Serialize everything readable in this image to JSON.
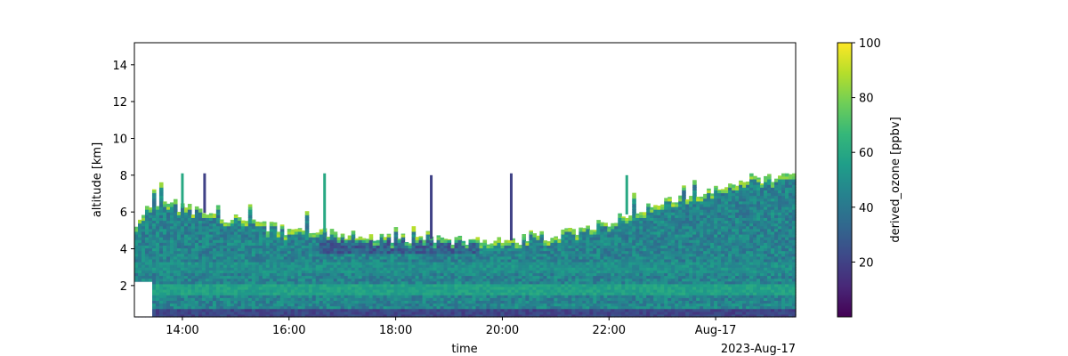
{
  "chart_data": {
    "type": "heatmap",
    "title": "",
    "xlabel": "time",
    "ylabel": "altitude [km]",
    "x_offset_label": "2023-Aug-17",
    "x_range": [
      "2023-08-16T13:06",
      "2023-08-17T01:30"
    ],
    "ylim": [
      0.3,
      15.2
    ],
    "x_ticks": [
      {
        "time": "2023-08-16T14:00",
        "label": "14:00"
      },
      {
        "time": "2023-08-16T16:00",
        "label": "16:00"
      },
      {
        "time": "2023-08-16T18:00",
        "label": "18:00"
      },
      {
        "time": "2023-08-16T20:00",
        "label": "20:00"
      },
      {
        "time": "2023-08-16T22:00",
        "label": "22:00"
      },
      {
        "time": "2023-08-17T00:00",
        "label": "Aug-17"
      }
    ],
    "y_ticks": [
      2,
      4,
      6,
      8,
      10,
      12,
      14
    ],
    "colorbar": {
      "label": "derived_ozone [ppbv]",
      "colormap": "viridis",
      "vmin": 0,
      "vmax": 100,
      "ticks": [
        20,
        40,
        60,
        80,
        100
      ]
    },
    "colormap_stops": [
      "#440154",
      "#482878",
      "#3e4989",
      "#31688e",
      "#26828e",
      "#1f9e89",
      "#35b779",
      "#6ece58",
      "#b5de2b",
      "#fde725"
    ],
    "grid": false,
    "data_summary": {
      "layer_top_altitude_km": [
        {
          "time": "2023-08-16T13:06",
          "value": 5.4
        },
        {
          "time": "2023-08-16T13:30",
          "value": 6.6
        },
        {
          "time": "2023-08-16T14:00",
          "value": 6.2
        },
        {
          "time": "2023-08-16T14:30",
          "value": 5.9
        },
        {
          "time": "2023-08-16T15:00",
          "value": 5.6
        },
        {
          "time": "2023-08-16T16:00",
          "value": 5.0
        },
        {
          "time": "2023-08-16T17:00",
          "value": 4.8
        },
        {
          "time": "2023-08-16T18:00",
          "value": 4.6
        },
        {
          "time": "2023-08-16T19:00",
          "value": 4.5
        },
        {
          "time": "2023-08-16T20:00",
          "value": 4.4
        },
        {
          "time": "2023-08-16T21:00",
          "value": 4.7
        },
        {
          "time": "2023-08-16T22:00",
          "value": 5.5
        },
        {
          "time": "2023-08-16T23:00",
          "value": 6.6
        },
        {
          "time": "2023-08-17T00:00",
          "value": 7.3
        },
        {
          "time": "2023-08-17T01:30",
          "value": 8.1
        }
      ],
      "spikes": [
        {
          "time": "2023-08-16T14:00",
          "top": 8.1
        },
        {
          "time": "2023-08-16T14:25",
          "top": 8.1
        },
        {
          "time": "2023-08-16T16:40",
          "top": 8.1
        },
        {
          "time": "2023-08-16T18:40",
          "top": 8.0
        },
        {
          "time": "2023-08-16T20:10",
          "top": 8.1
        },
        {
          "time": "2023-08-16T22:20",
          "top": 8.0
        }
      ],
      "background_value_ppbv": 45,
      "near_surface_value_ppbv": 15,
      "layer_top_value_ppbv": 80
    }
  }
}
